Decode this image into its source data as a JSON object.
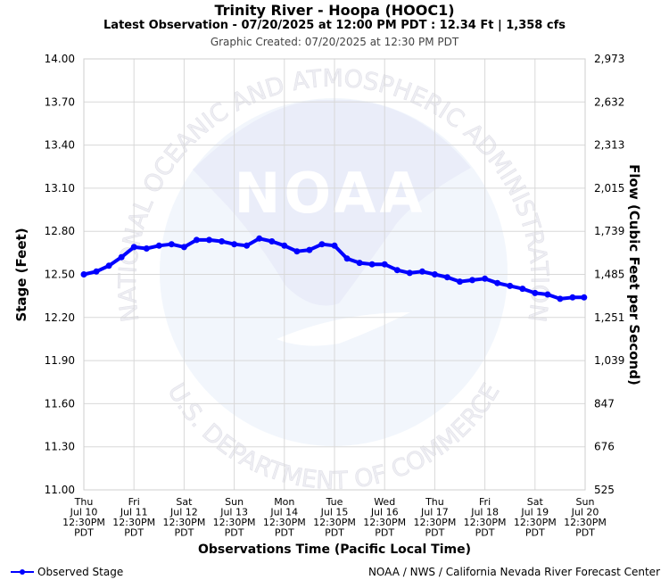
{
  "header": {
    "title": "Trinity River - Hoopa (HOOC1)",
    "subtitle": "Latest Observation - 07/20/2025 at 12:00 PM PDT : 12.34 Ft | 1,358 cfs",
    "created": "Graphic Created: 07/20/2025 at 12:30 PM PDT"
  },
  "watermark": {
    "logo_text": "NOAA",
    "ring_top": "NATIONAL OCEANIC AND ATMOSPHERIC ADMINISTRATION",
    "ring_bottom": "U.S. DEPARTMENT OF COMMERCE"
  },
  "legend": {
    "label": "Observed Stage",
    "color": "#0000ff"
  },
  "credit": "NOAA / NWS / California Nevada River Forecast Center",
  "chart_data": {
    "type": "line",
    "ylabel": "Stage (Feet)",
    "y2label": "Flow (Cubic Feet per Second)",
    "xlabel": "Observations Time (Pacific Local Time)",
    "ylim": [
      11.0,
      14.0
    ],
    "yticks": [
      "14.00",
      "13.70",
      "13.40",
      "13.10",
      "12.80",
      "12.50",
      "12.20",
      "11.90",
      "11.60",
      "11.30",
      "11.00"
    ],
    "y2ticks": [
      "2,973",
      "2,632",
      "2,313",
      "2,015",
      "1,739",
      "1,485",
      "1,251",
      "1,039",
      "847",
      "676",
      "525"
    ],
    "xticks": [
      [
        "Thu",
        "Jul 10",
        "12:30PM",
        "PDT"
      ],
      [
        "Fri",
        "Jul 11",
        "12:30PM",
        "PDT"
      ],
      [
        "Sat",
        "Jul 12",
        "12:30PM",
        "PDT"
      ],
      [
        "Sun",
        "Jul 13",
        "12:30PM",
        "PDT"
      ],
      [
        "Mon",
        "Jul 14",
        "12:30PM",
        "PDT"
      ],
      [
        "Tue",
        "Jul 15",
        "12:30PM",
        "PDT"
      ],
      [
        "Wed",
        "Jul 16",
        "12:30PM",
        "PDT"
      ],
      [
        "Thu",
        "Jul 17",
        "12:30PM",
        "PDT"
      ],
      [
        "Fri",
        "Jul 18",
        "12:30PM",
        "PDT"
      ],
      [
        "Sat",
        "Jul 19",
        "12:30PM",
        "PDT"
      ],
      [
        "Sun",
        "Jul 20",
        "12:30PM",
        "PDT"
      ]
    ],
    "grid": true,
    "series": [
      {
        "name": "Observed Stage",
        "color": "#0000ff",
        "x": [
          "2025-07-10 12:30",
          "2025-07-10 18:30",
          "2025-07-11 00:30",
          "2025-07-11 06:30",
          "2025-07-11 12:30",
          "2025-07-11 18:30",
          "2025-07-12 00:30",
          "2025-07-12 06:30",
          "2025-07-12 12:30",
          "2025-07-12 18:30",
          "2025-07-13 00:30",
          "2025-07-13 06:30",
          "2025-07-13 12:30",
          "2025-07-13 18:30",
          "2025-07-14 00:30",
          "2025-07-14 06:30",
          "2025-07-14 12:30",
          "2025-07-14 18:30",
          "2025-07-15 00:30",
          "2025-07-15 06:30",
          "2025-07-15 12:30",
          "2025-07-15 18:30",
          "2025-07-16 00:30",
          "2025-07-16 06:30",
          "2025-07-16 12:30",
          "2025-07-16 18:30",
          "2025-07-17 00:30",
          "2025-07-17 06:30",
          "2025-07-17 12:30",
          "2025-07-17 18:30",
          "2025-07-18 00:30",
          "2025-07-18 06:30",
          "2025-07-18 12:30",
          "2025-07-18 18:30",
          "2025-07-19 00:30",
          "2025-07-19 06:30",
          "2025-07-19 12:30",
          "2025-07-19 18:30",
          "2025-07-20 00:30",
          "2025-07-20 06:30",
          "2025-07-20 12:00"
        ],
        "values": [
          12.5,
          12.52,
          12.56,
          12.62,
          12.69,
          12.68,
          12.7,
          12.71,
          12.69,
          12.74,
          12.74,
          12.73,
          12.71,
          12.7,
          12.75,
          12.73,
          12.7,
          12.66,
          12.67,
          12.71,
          12.7,
          12.61,
          12.58,
          12.57,
          12.57,
          12.53,
          12.51,
          12.52,
          12.5,
          12.48,
          12.45,
          12.46,
          12.47,
          12.44,
          12.42,
          12.4,
          12.37,
          12.36,
          12.33,
          12.34,
          12.34
        ]
      }
    ]
  }
}
